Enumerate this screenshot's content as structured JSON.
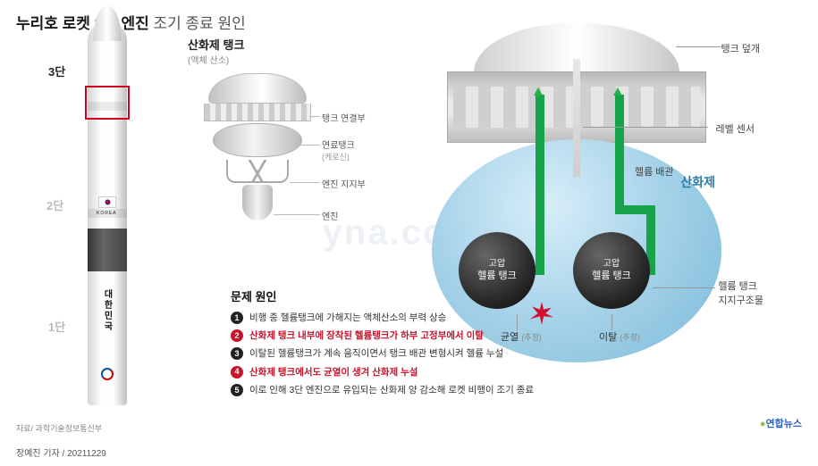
{
  "title": {
    "main": "누리호 로켓 3단 엔진",
    "sub": "조기 종료 원인"
  },
  "rocket": {
    "stage3": "3단",
    "stage2": "2단",
    "stage1": "1단",
    "korea": "KOREA",
    "country": "대한민국"
  },
  "detail": {
    "oxi_title": "산화제 탱크",
    "oxi_sub": "(액체 산소)",
    "labels": {
      "tank_joint": "탱크 연결부",
      "fuel_tank": "연료탱크",
      "fuel_tank_sub": "(케로신)",
      "engine_support": "엔진 지지부",
      "engine": "엔진"
    }
  },
  "cutaway": {
    "tank_cover": "탱크 덮개",
    "level_sensor": "레벨 센서",
    "helium_pipe": "헬륨 배관",
    "oxidizer": "산화제",
    "he_tank": {
      "l1": "고압",
      "l2": "헬륨 탱크"
    },
    "he_support": {
      "l1": "헬륨 탱크",
      "l2": "지지구조물"
    },
    "crack": "균열",
    "crack_sub": "(추정)",
    "detach": "이탈",
    "detach_sub": "(추정)"
  },
  "causes": {
    "title": "문제 원인",
    "items": [
      {
        "n": "1",
        "text": "비행 중 헬륨탱크에 가해지는 액체산소의 부력 상승",
        "emph": false
      },
      {
        "n": "2",
        "text": "산화제 탱크 내부에 장착된 헬륨탱크가 하부 고정부에서 이탈",
        "emph": true
      },
      {
        "n": "3",
        "text": "이탈된 헬륨탱크가 계속 움직이면서 탱크 배관 변형시켜 헬륨 누설",
        "emph": false
      },
      {
        "n": "4",
        "text": "산화제 탱크에서도 균열이 생겨 산화제 누설",
        "emph": true
      },
      {
        "n": "5",
        "text": "이로 인해 3단 엔진으로 유입되는 산화제 양 감소해 로켓 비행이 조기 종료",
        "emph": false
      }
    ]
  },
  "source": "자료/ 과학기술정보통신부",
  "byline": "장예진 기자 / 20211229",
  "brand": "연합뉴스",
  "colors": {
    "accent_red": "#c6142a",
    "pipe_green": "#17a34a",
    "oxi_blue": "#7abad8",
    "oxi_text": "#2a7ca8"
  }
}
